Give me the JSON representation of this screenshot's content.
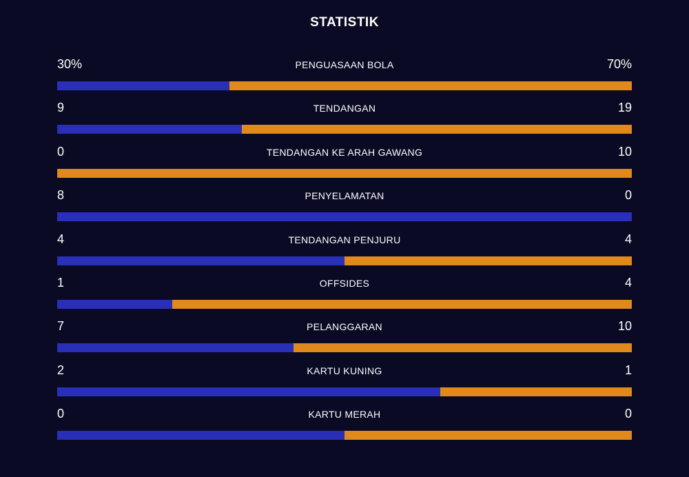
{
  "title": "STATISTIK",
  "colors": {
    "background": "#0a0a24",
    "home": "#2a2fb8",
    "away": "#e08a1c"
  },
  "stats": [
    {
      "label": "PENGUASAAN BOLA",
      "home": "30%",
      "away": "70%",
      "home_share": 0.3
    },
    {
      "label": "TENDANGAN",
      "home": "9",
      "away": "19",
      "home_share": 0.3214
    },
    {
      "label": "TENDANGAN KE ARAH GAWANG",
      "home": "0",
      "away": "10",
      "home_share": 0.0
    },
    {
      "label": "PENYELAMATAN",
      "home": "8",
      "away": "0",
      "home_share": 1.0
    },
    {
      "label": "TENDANGAN PENJURU",
      "home": "4",
      "away": "4",
      "home_share": 0.5
    },
    {
      "label": "OFFSIDES",
      "home": "1",
      "away": "4",
      "home_share": 0.2
    },
    {
      "label": "PELANGGARAN",
      "home": "7",
      "away": "10",
      "home_share": 0.4118
    },
    {
      "label": "KARTU KUNING",
      "home": "2",
      "away": "1",
      "home_share": 0.6667
    },
    {
      "label": "KARTU MERAH",
      "home": "0",
      "away": "0",
      "home_share": 0.5
    }
  ]
}
